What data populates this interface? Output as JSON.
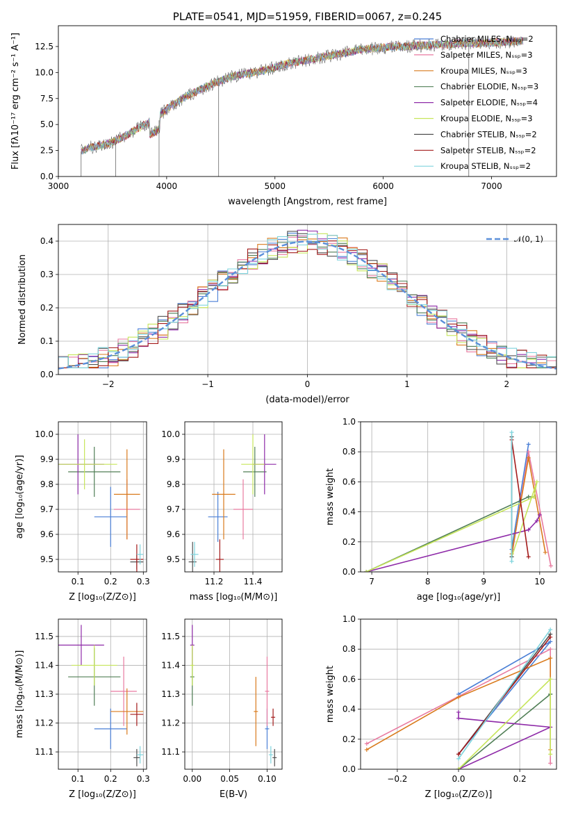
{
  "colors": [
    "#4a7fd6",
    "#e87aa0",
    "#d97a1c",
    "#4f7e55",
    "#8e2aa8",
    "#c6e55a",
    "#505050",
    "#a31a1a",
    "#7fd4dd"
  ],
  "chart_data": [
    {
      "id": "spectrum",
      "type": "line",
      "title": "PLATE=0541, MJD=51959, FIBERID=0067, z=0.245",
      "xlabel": "wavelength [Angstrom, rest frame]",
      "ylabel": "Flux [fλ10⁻¹⁷ erg cm⁻² s⁻¹ A⁻¹]",
      "xlim": [
        3000,
        7600
      ],
      "ylim": [
        0,
        14.5
      ],
      "xticks": [
        3000,
        4000,
        5000,
        6000,
        7000
      ],
      "yticks": [
        0.0,
        2.5,
        5.0,
        7.5,
        10.0,
        12.5
      ],
      "legend": "upper-right",
      "legend_entries": [
        "Chabrier MILES, Nₛₛₚ=2",
        "Salpeter MILES, Nₛₛₚ=3",
        "Kroupa MILES, Nₛₛₚ=3",
        "Chabrier ELODIE, Nₛₛₚ=3",
        "Salpeter ELODIE, Nₛₛₚ=4",
        "Kroupa ELODIE, Nₛₛₚ=3",
        "Chabrier STELIB, Nₛₛₚ=2",
        "Salpeter STELIB, Nₛₛₚ=2",
        "Kroupa STELIB, Nₛₛₚ=2"
      ],
      "envelope": {
        "x": [
          3200,
          3300,
          3400,
          3500,
          3600,
          3700,
          3800,
          3900,
          4000,
          4100,
          4200,
          4300,
          4400,
          4500,
          4600,
          4700,
          4800,
          4900,
          5000,
          5100,
          5200,
          5300,
          5400,
          5500,
          5600,
          5700,
          5800,
          5900,
          6000,
          6100,
          6200,
          6300,
          6400,
          6500,
          6600,
          6700,
          6800,
          6900,
          7000,
          7100,
          7200,
          7300
        ],
        "y": [
          2.4,
          2.8,
          3.0,
          3.3,
          3.8,
          4.4,
          5.0,
          5.5,
          6.5,
          7.2,
          7.8,
          8.3,
          8.8,
          9.2,
          9.6,
          9.8,
          10.0,
          10.2,
          10.5,
          10.8,
          11.0,
          11.2,
          11.4,
          11.6,
          11.8,
          12.0,
          12.2,
          12.3,
          12.4,
          12.5,
          12.5,
          12.6,
          12.6,
          12.7,
          12.7,
          12.8,
          12.8,
          12.8,
          12.9,
          12.9,
          13.0,
          13.0
        ]
      }
    },
    {
      "id": "residuals",
      "type": "line",
      "xlabel": "(data-model)/error",
      "ylabel": "Normed distribution",
      "xlim": [
        -2.5,
        2.5
      ],
      "ylim": [
        0.0,
        0.45
      ],
      "xticks": [
        -2,
        -1,
        0,
        1,
        2
      ],
      "yticks": [
        0.0,
        0.1,
        0.2,
        0.3,
        0.4
      ],
      "grid": true,
      "legend": "upper-right",
      "legend_entry": "𝒩(0, 1)",
      "normal": {
        "mu": 0,
        "sigma": 1
      }
    },
    {
      "id": "age-vs-Z",
      "type": "scatter",
      "xlabel": "Z [log₁₀(Z/Z⊙)]",
      "ylabel": "age  [log₁₀(age/yr)]",
      "xlim": [
        0.04,
        0.31
      ],
      "ylim": [
        9.45,
        10.05
      ],
      "xticks": [
        0.1,
        0.2,
        0.3
      ],
      "yticks": [
        9.5,
        9.6,
        9.7,
        9.8,
        9.9,
        10.0
      ],
      "grid": true,
      "points": [
        {
          "x": 0.2,
          "y": 9.67,
          "xerr": 0.05,
          "yerr": 0.12
        },
        {
          "x": 0.25,
          "y": 9.7,
          "xerr": 0.04,
          "yerr": 0.12
        },
        {
          "x": 0.25,
          "y": 9.76,
          "xerr": 0.04,
          "yerr": 0.18
        },
        {
          "x": 0.15,
          "y": 9.85,
          "xerr": 0.08,
          "yerr": 0.1
        },
        {
          "x": 0.1,
          "y": 9.88,
          "xerr": 0.08,
          "yerr": 0.12
        },
        {
          "x": 0.12,
          "y": 9.88,
          "xerr": 0.1,
          "yerr": 0.1
        },
        {
          "x": 0.28,
          "y": 9.49,
          "xerr": 0.02,
          "yerr": 0.03
        },
        {
          "x": 0.28,
          "y": 9.5,
          "xerr": 0.02,
          "yerr": 0.06
        },
        {
          "x": 0.29,
          "y": 9.52,
          "xerr": 0.01,
          "yerr": 0.04
        }
      ]
    },
    {
      "id": "age-vs-mass",
      "type": "scatter",
      "xlabel": "mass [log₁₀(M/M⊙)]",
      "xlim": [
        11.05,
        11.55
      ],
      "ylim": [
        9.45,
        10.05
      ],
      "xticks": [
        11.2,
        11.4
      ],
      "yticks": [
        9.5,
        9.6,
        9.7,
        9.8,
        9.9,
        10.0
      ],
      "grid": true,
      "points": [
        {
          "x": 11.22,
          "y": 9.67,
          "xerr": 0.05,
          "yerr": 0.1
        },
        {
          "x": 11.35,
          "y": 9.7,
          "xerr": 0.05,
          "yerr": 0.12
        },
        {
          "x": 11.25,
          "y": 9.76,
          "xerr": 0.06,
          "yerr": 0.18
        },
        {
          "x": 11.41,
          "y": 9.85,
          "xerr": 0.06,
          "yerr": 0.1
        },
        {
          "x": 11.46,
          "y": 9.88,
          "xerr": 0.06,
          "yerr": 0.12
        },
        {
          "x": 11.4,
          "y": 9.88,
          "xerr": 0.06,
          "yerr": 0.12
        },
        {
          "x": 11.09,
          "y": 9.49,
          "xerr": 0.02,
          "yerr": 0.08
        },
        {
          "x": 11.23,
          "y": 9.5,
          "xerr": 0.02,
          "yerr": 0.08
        },
        {
          "x": 11.1,
          "y": 9.52,
          "xerr": 0.02,
          "yerr": 0.05
        }
      ]
    },
    {
      "id": "massweight-vs-age",
      "type": "line",
      "xlabel": "age  [log₁₀(age/yr)]",
      "ylabel": "mass weight",
      "xlim": [
        6.8,
        10.3
      ],
      "ylim": [
        0.0,
        1.0
      ],
      "xticks": [
        7,
        8,
        9,
        10
      ],
      "yticks": [
        0.0,
        0.2,
        0.4,
        0.6,
        0.8,
        1.0
      ],
      "grid": true,
      "series": [
        {
          "values": [
            [
              9.5,
              0.15
            ],
            [
              9.8,
              0.85
            ]
          ]
        },
        {
          "values": [
            [
              9.5,
              0.1
            ],
            [
              9.8,
              0.8
            ],
            [
              10.2,
              0.04
            ]
          ]
        },
        {
          "values": [
            [
              9.5,
              0.12
            ],
            [
              9.8,
              0.76
            ],
            [
              10.1,
              0.13
            ]
          ]
        },
        {
          "values": [
            [
              6.9,
              0.0
            ],
            [
              9.8,
              0.5
            ],
            [
              9.9,
              0.5
            ]
          ]
        },
        {
          "values": [
            [
              6.9,
              0.0
            ],
            [
              9.8,
              0.28
            ],
            [
              9.95,
              0.34
            ],
            [
              10.0,
              0.38
            ]
          ]
        },
        {
          "values": [
            [
              6.9,
              0.0
            ],
            [
              9.9,
              0.5
            ],
            [
              9.95,
              0.6
            ],
            [
              9.5,
              0.1
            ]
          ]
        },
        {
          "values": [
            [
              9.5,
              0.9
            ],
            [
              9.5,
              0.1
            ]
          ]
        },
        {
          "values": [
            [
              9.5,
              0.88
            ],
            [
              9.8,
              0.1
            ]
          ]
        },
        {
          "values": [
            [
              9.5,
              0.93
            ],
            [
              9.5,
              0.07
            ]
          ]
        }
      ]
    },
    {
      "id": "mass-vs-Z",
      "type": "scatter",
      "xlabel": "Z [log₁₀(Z/Z⊙)]",
      "ylabel": "mass [log₁₀(M/M⊙)]",
      "xlim": [
        0.04,
        0.31
      ],
      "ylim": [
        11.04,
        11.56
      ],
      "xticks": [
        0.1,
        0.2,
        0.3
      ],
      "yticks": [
        11.1,
        11.2,
        11.3,
        11.4,
        11.5
      ],
      "grid": true,
      "points": [
        {
          "x": 0.2,
          "y": 11.18,
          "xerr": 0.05,
          "yerr": 0.07
        },
        {
          "x": 0.24,
          "y": 11.31,
          "xerr": 0.04,
          "yerr": 0.12
        },
        {
          "x": 0.25,
          "y": 11.24,
          "xerr": 0.05,
          "yerr": 0.08
        },
        {
          "x": 0.15,
          "y": 11.36,
          "xerr": 0.08,
          "yerr": 0.1
        },
        {
          "x": 0.11,
          "y": 11.47,
          "xerr": 0.07,
          "yerr": 0.07
        },
        {
          "x": 0.15,
          "y": 11.4,
          "xerr": 0.07,
          "yerr": 0.07
        },
        {
          "x": 0.28,
          "y": 11.08,
          "xerr": 0.01,
          "yerr": 0.03
        },
        {
          "x": 0.28,
          "y": 11.23,
          "xerr": 0.02,
          "yerr": 0.04
        },
        {
          "x": 0.29,
          "y": 11.09,
          "xerr": 0.01,
          "yerr": 0.03
        }
      ]
    },
    {
      "id": "mass-vs-ebv",
      "type": "scatter",
      "xlabel": "E(B-V)",
      "xlim": [
        -0.01,
        0.12
      ],
      "ylim": [
        11.04,
        11.56
      ],
      "xticks": [
        0.0,
        0.05,
        0.1
      ],
      "yticks": [
        11.1,
        11.2,
        11.3,
        11.4,
        11.5
      ],
      "grid": true,
      "points": [
        {
          "x": 0.1,
          "y": 11.18,
          "xerr": 0,
          "yerr": 0.07
        },
        {
          "x": 0.1,
          "y": 11.31,
          "xerr": 0,
          "yerr": 0.12
        },
        {
          "x": 0.085,
          "y": 11.24,
          "xerr": 0,
          "yerr": 0.12
        },
        {
          "x": 0.0,
          "y": 11.36,
          "xerr": 0,
          "yerr": 0.1
        },
        {
          "x": 0.0,
          "y": 11.47,
          "xerr": 0,
          "yerr": 0.07
        },
        {
          "x": 0.0,
          "y": 11.4,
          "xerr": 0,
          "yerr": 0.07
        },
        {
          "x": 0.11,
          "y": 11.08,
          "xerr": 0,
          "yerr": 0.03
        },
        {
          "x": 0.108,
          "y": 11.22,
          "xerr": 0,
          "yerr": 0.03
        },
        {
          "x": 0.105,
          "y": 11.09,
          "xerr": 0,
          "yerr": 0.03
        }
      ]
    },
    {
      "id": "massweight-vs-Z",
      "type": "line",
      "xlabel": "Z [log₁₀(Z/Z⊙)]",
      "ylabel": "mass weight",
      "xlim": [
        -0.32,
        0.32
      ],
      "ylim": [
        0.0,
        1.0
      ],
      "xticks": [
        -0.2,
        0.0,
        0.2
      ],
      "yticks": [
        0.0,
        0.2,
        0.4,
        0.6,
        0.8,
        1.0
      ],
      "grid": true,
      "series": [
        {
          "values": [
            [
              0.0,
              0.5
            ],
            [
              0.3,
              0.85
            ],
            [
              0.0,
              0.1
            ]
          ]
        },
        {
          "values": [
            [
              -0.3,
              0.17
            ],
            [
              0.3,
              0.8
            ],
            [
              0.3,
              0.04
            ]
          ]
        },
        {
          "values": [
            [
              -0.3,
              0.13
            ],
            [
              0.0,
              0.48
            ],
            [
              0.3,
              0.74
            ],
            [
              0.3,
              0.13
            ]
          ]
        },
        {
          "values": [
            [
              0.0,
              0.0
            ],
            [
              0.3,
              0.5
            ],
            [
              0.3,
              0.5
            ]
          ]
        },
        {
          "values": [
            [
              0.0,
              0.0
            ],
            [
              0.3,
              0.28
            ],
            [
              0.0,
              0.34
            ],
            [
              0.0,
              0.38
            ]
          ]
        },
        {
          "values": [
            [
              0.0,
              0.0
            ],
            [
              0.3,
              0.6
            ],
            [
              0.3,
              0.1
            ]
          ]
        },
        {
          "values": [
            [
              0.0,
              0.1
            ],
            [
              0.3,
              0.9
            ]
          ]
        },
        {
          "values": [
            [
              0.0,
              0.1
            ],
            [
              0.3,
              0.88
            ]
          ]
        },
        {
          "values": [
            [
              0.0,
              0.07
            ],
            [
              0.3,
              0.93
            ]
          ]
        }
      ]
    }
  ]
}
